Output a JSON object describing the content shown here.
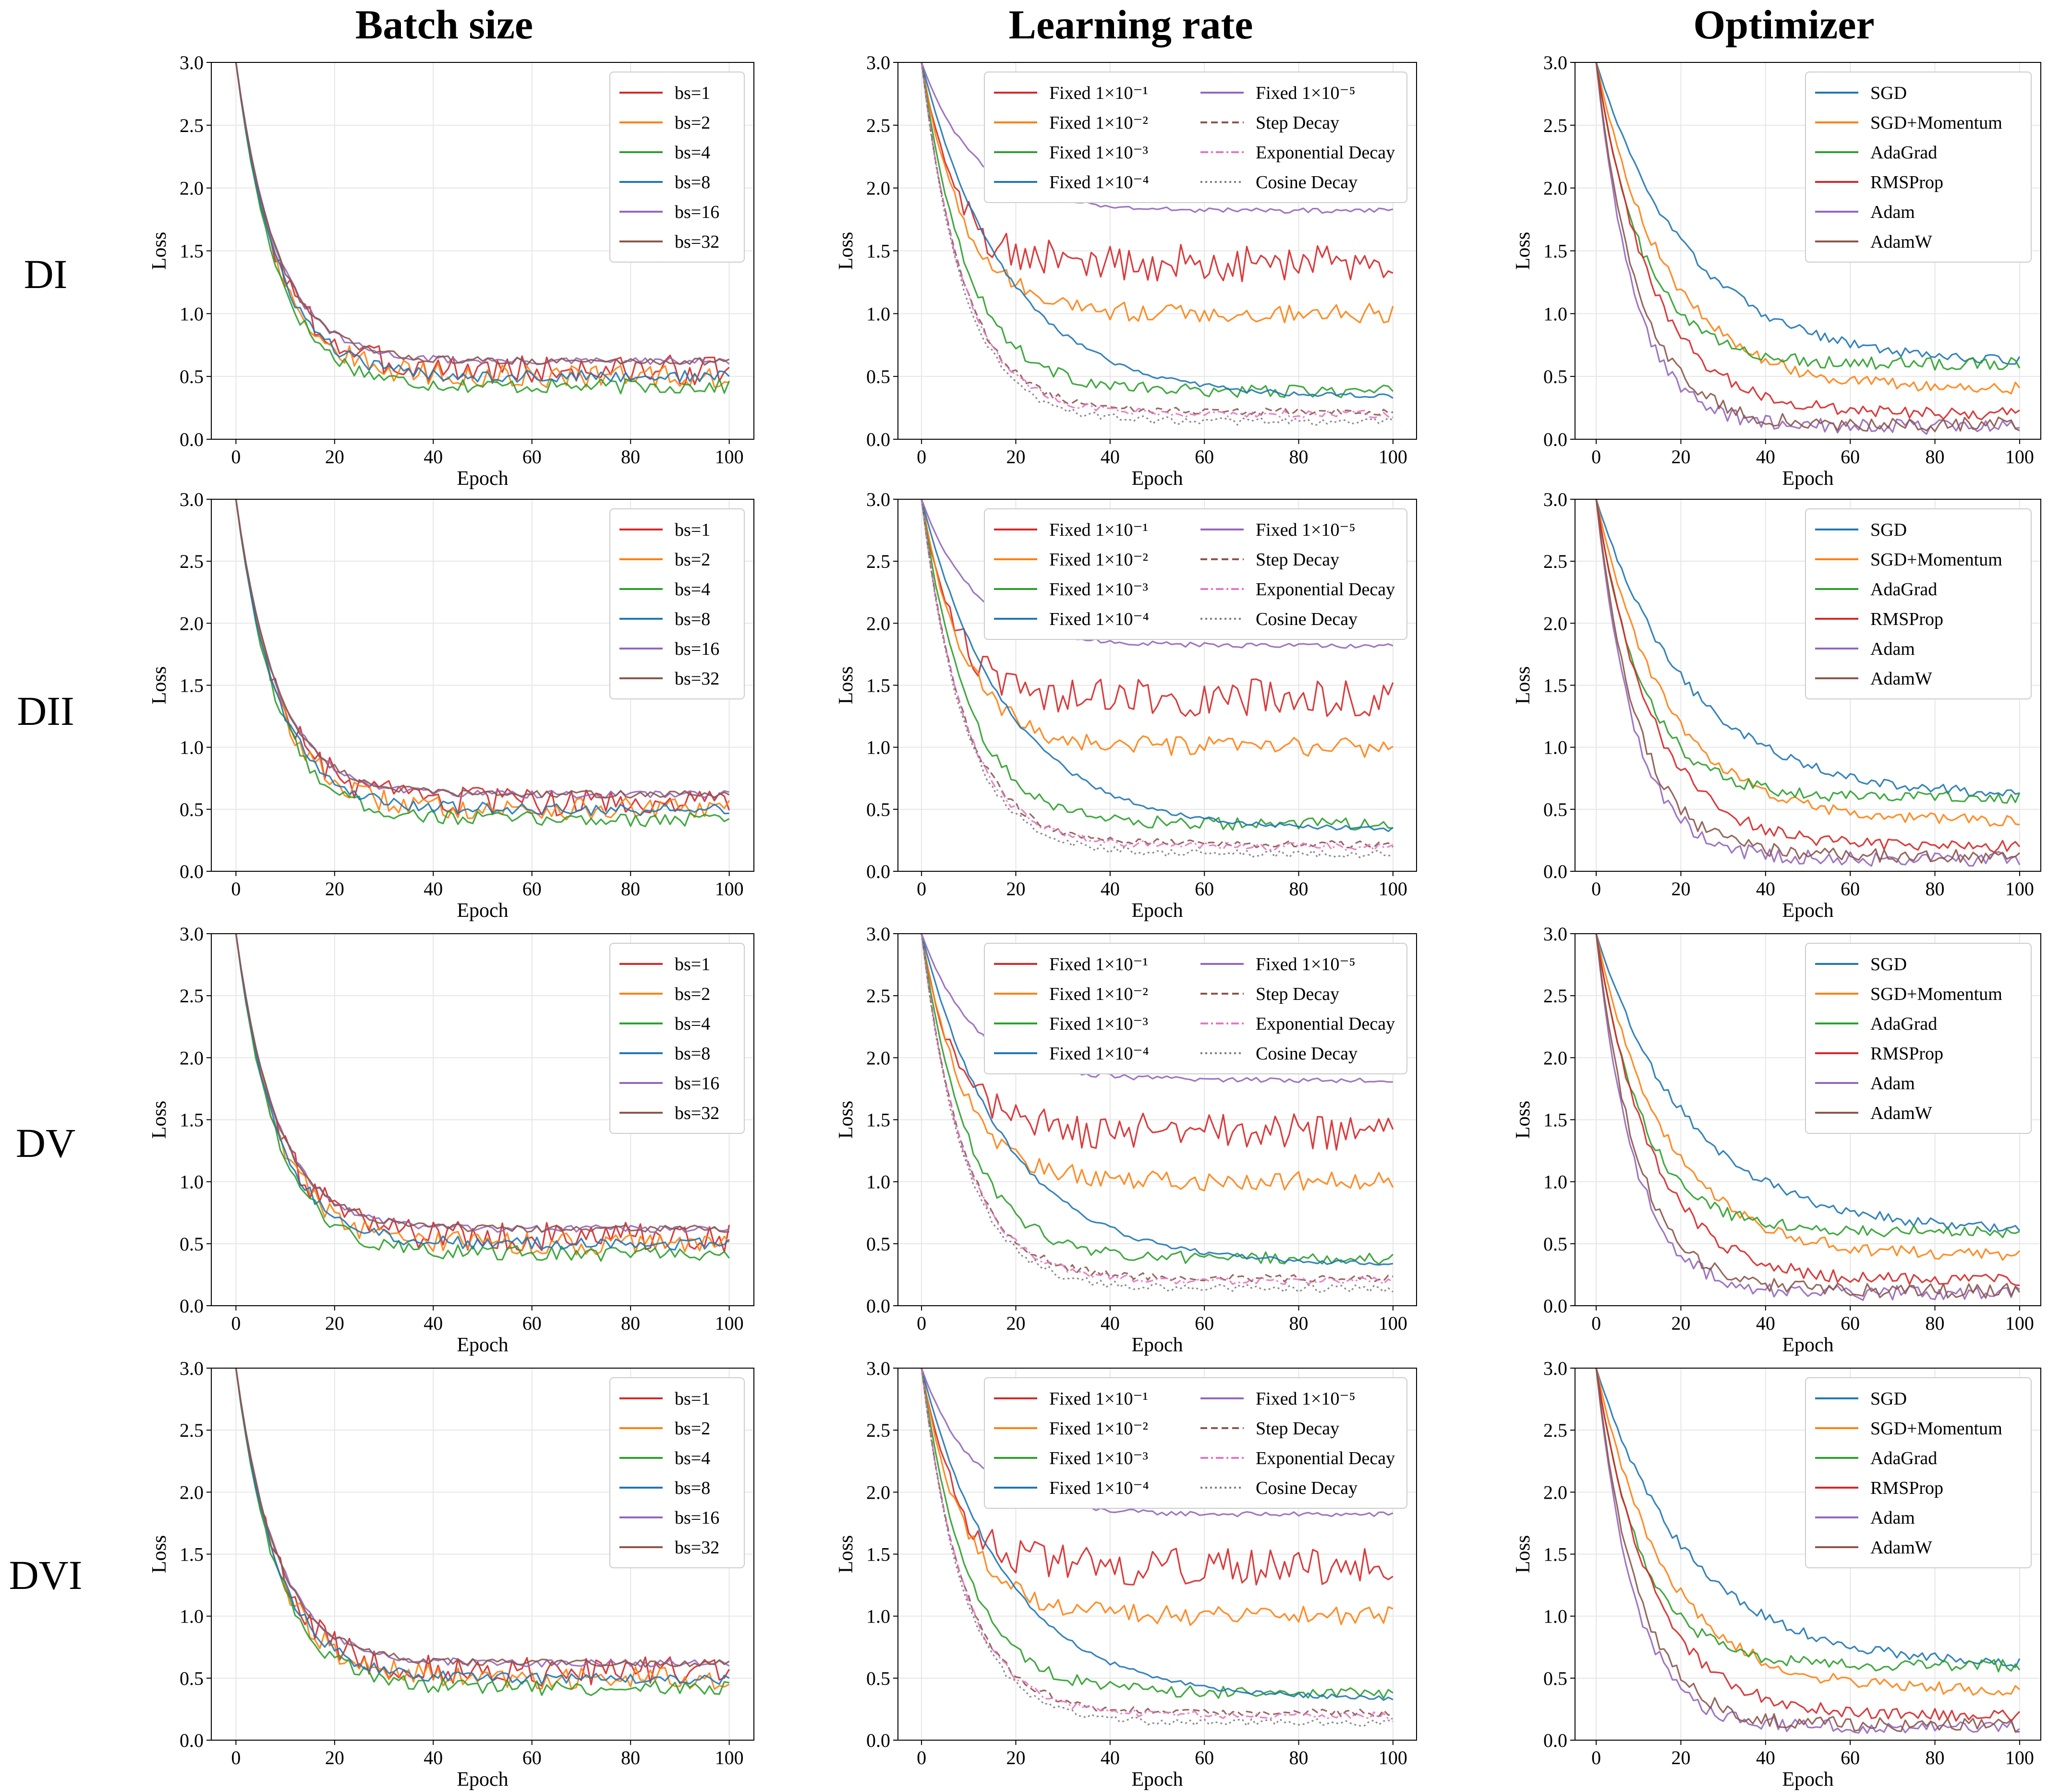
{
  "column_titles": [
    "Batch size",
    "Learning rate",
    "Optimizer"
  ],
  "row_labels": [
    "DI",
    "DII",
    "DV",
    "DVI"
  ],
  "colors": {
    "blue": "#1f77b4",
    "orange": "#ff7f0e",
    "green": "#2ca02c",
    "red": "#d62728",
    "purple": "#9467bd",
    "brown": "#8c564b",
    "pink": "#e377c2",
    "gray": "#7f7f7f",
    "grid": "#e6e6e6"
  },
  "chart_data": [
    {
      "type": "line",
      "title": "Batch size",
      "xlabel": "Epoch",
      "ylabel": "Loss",
      "xlim": [
        0,
        100
      ],
      "ylim": [
        0,
        3
      ],
      "xticks": [
        "0",
        "20",
        "40",
        "60",
        "80",
        "100"
      ],
      "yticks": [
        "0.0",
        "0.5",
        "1.0",
        "1.5",
        "2.0",
        "2.5",
        "3.0"
      ],
      "legend_position": "top-right",
      "series": [
        {
          "name": "bs=1",
          "color": "#d62728",
          "style": "solid",
          "start": 3.0,
          "final": 0.55,
          "noise": 0.12
        },
        {
          "name": "bs=2",
          "color": "#ff7f0e",
          "style": "solid",
          "start": 3.0,
          "final": 0.5,
          "noise": 0.09
        },
        {
          "name": "bs=4",
          "color": "#2ca02c",
          "style": "solid",
          "start": 3.0,
          "final": 0.42,
          "noise": 0.06
        },
        {
          "name": "bs=8",
          "color": "#1f77b4",
          "style": "solid",
          "start": 3.0,
          "final": 0.5,
          "noise": 0.05
        },
        {
          "name": "bs=16",
          "color": "#9467bd",
          "style": "solid",
          "start": 3.0,
          "final": 0.62,
          "noise": 0.03
        },
        {
          "name": "bs=32",
          "color": "#8c564b",
          "style": "solid",
          "start": 3.0,
          "final": 0.62,
          "noise": 0.03
        }
      ],
      "legend_columns": 1
    },
    {
      "type": "line",
      "title": "Learning rate",
      "xlabel": "Epoch",
      "ylabel": "Loss",
      "xlim": [
        0,
        100
      ],
      "ylim": [
        0,
        3
      ],
      "xticks": [
        "0",
        "20",
        "40",
        "60",
        "80",
        "100"
      ],
      "yticks": [
        "0.0",
        "0.5",
        "1.0",
        "1.5",
        "2.0",
        "2.5",
        "3.0"
      ],
      "legend_position": "top-right",
      "series": [
        {
          "name": "Fixed 1×10⁻¹",
          "color": "#d62728",
          "style": "solid",
          "start": 3.0,
          "final": 1.4,
          "noise": 0.15
        },
        {
          "name": "Fixed 1×10⁻²",
          "color": "#ff7f0e",
          "style": "solid",
          "start": 3.0,
          "final": 1.0,
          "noise": 0.08
        },
        {
          "name": "Fixed 1×10⁻³",
          "color": "#2ca02c",
          "style": "solid",
          "start": 3.0,
          "final": 0.38,
          "noise": 0.05
        },
        {
          "name": "Fixed 1×10⁻⁴",
          "color": "#1f77b4",
          "style": "solid",
          "start": 3.0,
          "final": 0.33,
          "noise": 0.02
        },
        {
          "name": "Fixed 1×10⁻⁵",
          "color": "#9467bd",
          "style": "solid",
          "start": 3.0,
          "final": 1.82,
          "noise": 0.02
        },
        {
          "name": "Step Decay",
          "color": "#8c564b",
          "style": "dashed",
          "start": 3.0,
          "final": 0.22,
          "noise": 0.03
        },
        {
          "name": "Exponential Decay",
          "color": "#e377c2",
          "style": "dashdot",
          "start": 3.0,
          "final": 0.2,
          "noise": 0.03
        },
        {
          "name": "Cosine Decay",
          "color": "#7f7f7f",
          "style": "dotted",
          "start": 3.0,
          "final": 0.14,
          "noise": 0.03
        }
      ],
      "legend_columns": 2
    },
    {
      "type": "line",
      "title": "Optimizer",
      "xlabel": "Epoch",
      "ylabel": "Loss",
      "xlim": [
        0,
        100
      ],
      "ylim": [
        0,
        3
      ],
      "xticks": [
        "0",
        "20",
        "40",
        "60",
        "80",
        "100"
      ],
      "yticks": [
        "0.0",
        "0.5",
        "1.0",
        "1.5",
        "2.0",
        "2.5",
        "3.0"
      ],
      "legend_position": "top-right",
      "series": [
        {
          "name": "SGD",
          "color": "#1f77b4",
          "style": "solid",
          "start": 3.0,
          "final": 0.6,
          "noise": 0.04
        },
        {
          "name": "SGD+Momentum",
          "color": "#ff7f0e",
          "style": "solid",
          "start": 3.0,
          "final": 0.4,
          "noise": 0.05
        },
        {
          "name": "AdaGrad",
          "color": "#2ca02c",
          "style": "solid",
          "start": 3.0,
          "final": 0.6,
          "noise": 0.05
        },
        {
          "name": "RMSProp",
          "color": "#d62728",
          "style": "solid",
          "start": 3.0,
          "final": 0.2,
          "noise": 0.05
        },
        {
          "name": "Adam",
          "color": "#9467bd",
          "style": "solid",
          "start": 3.0,
          "final": 0.1,
          "noise": 0.06
        },
        {
          "name": "AdamW",
          "color": "#8c564b",
          "style": "solid",
          "start": 3.0,
          "final": 0.12,
          "noise": 0.06
        }
      ],
      "legend_columns": 1
    }
  ]
}
